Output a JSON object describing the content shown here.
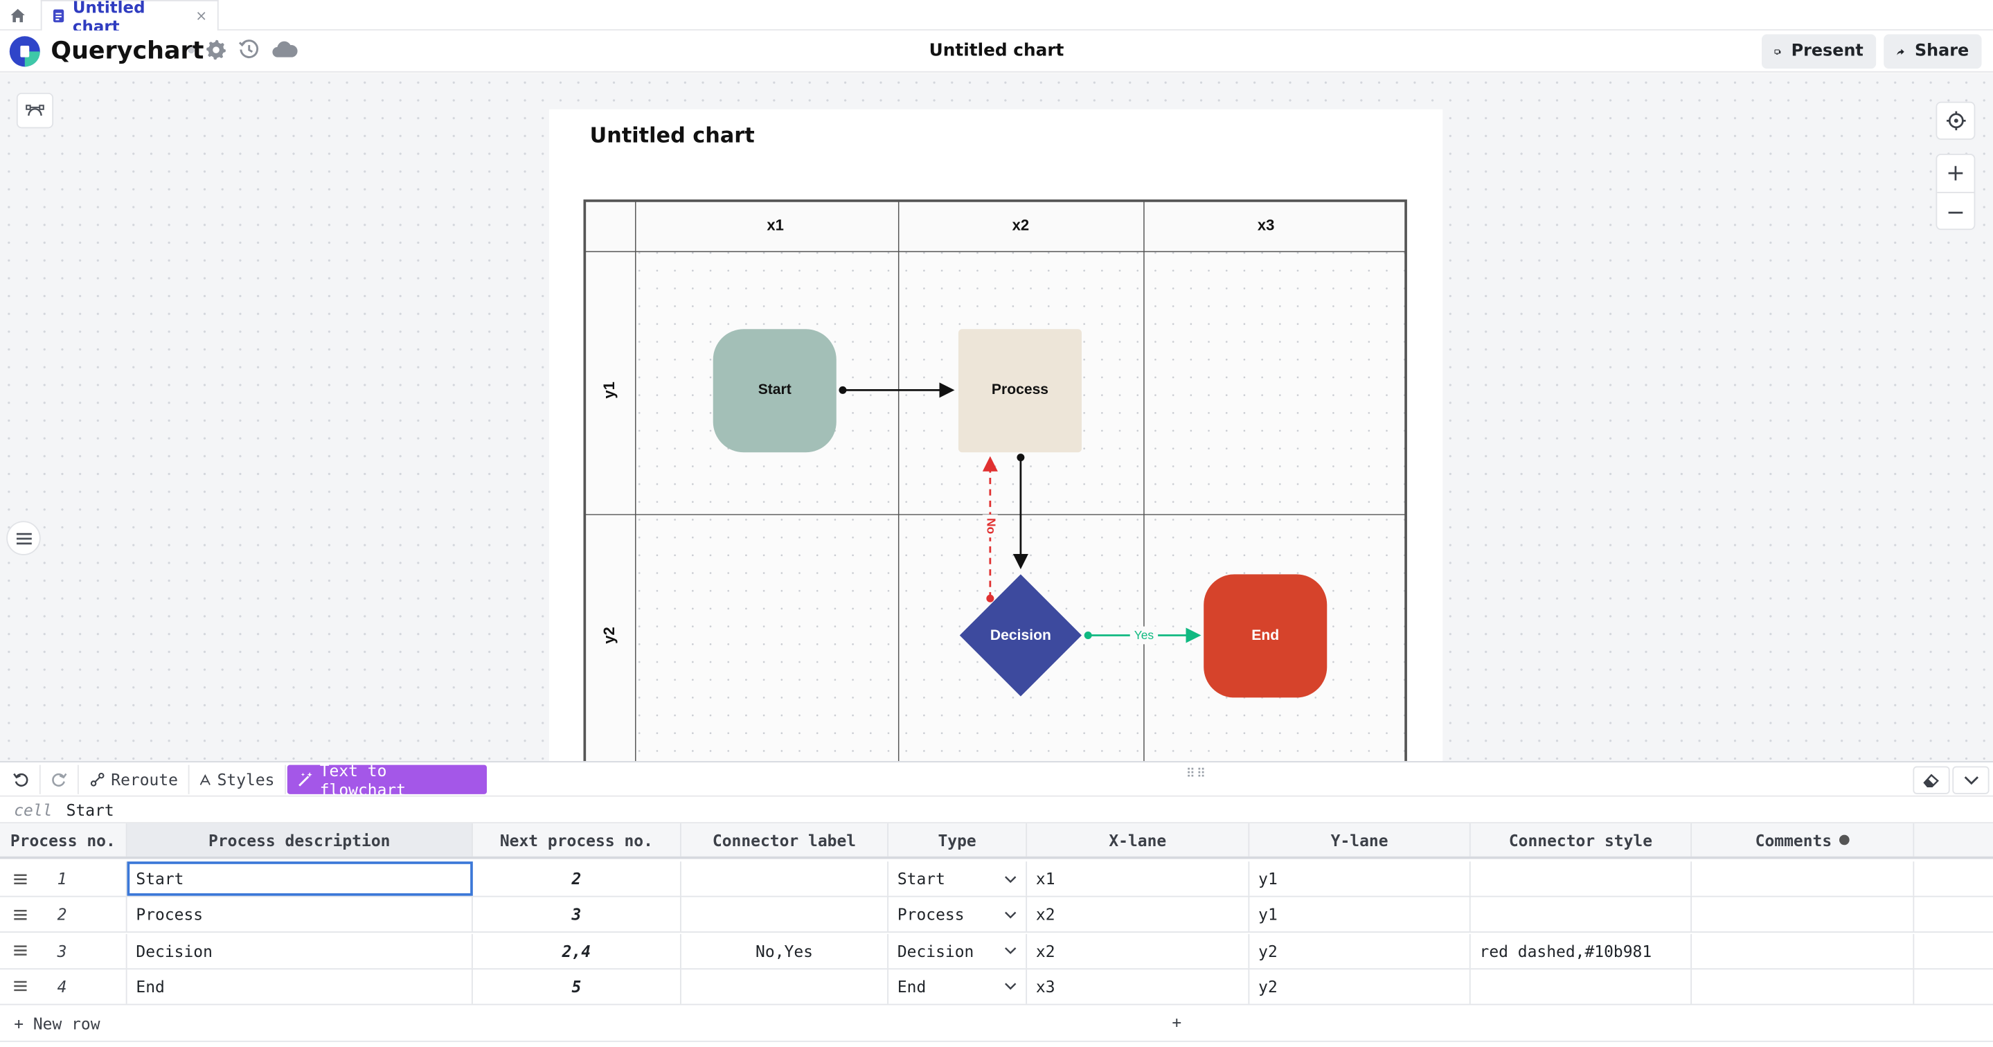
{
  "tab": {
    "label": "Untitled chart",
    "close": "×"
  },
  "app": {
    "name": "Querychart"
  },
  "header": {
    "title": "Untitled chart",
    "present_label": "Present",
    "share_label": "Share"
  },
  "chart": {
    "title": "Untitled chart",
    "columns": [
      "x1",
      "x2",
      "x3"
    ],
    "rows": [
      "y1",
      "y2"
    ],
    "nodes": {
      "start": "Start",
      "process": "Process",
      "decision": "Decision",
      "end": "End"
    },
    "edge_labels": {
      "no": "No",
      "yes": "Yes"
    },
    "colors": {
      "start": "#a3bfb7",
      "process": "#ede5d8",
      "decision": "#3d4a9e",
      "end": "#d6432b",
      "no_edge": "#e03030",
      "yes_edge": "#10b981"
    }
  },
  "zoom": {
    "in": "+",
    "out": "−"
  },
  "toolbar": {
    "reroute": "Reroute",
    "styles": "Styles",
    "text_to_flowchart": "Text to flowchart",
    "drag": "⠿⠿"
  },
  "cellbar": {
    "tag": "cell",
    "value": "Start"
  },
  "table": {
    "headers": [
      "Process no.",
      "Process description",
      "Next process no.",
      "Connector label",
      "Type",
      "X-lane",
      "Y-lane",
      "Connector style",
      "Comments"
    ],
    "rows": [
      {
        "no": "1",
        "desc": "Start",
        "next": "2",
        "label": "",
        "type": "Start",
        "x": "x1",
        "y": "y1",
        "style": "",
        "comments": ""
      },
      {
        "no": "2",
        "desc": "Process",
        "next": "3",
        "label": "",
        "type": "Process",
        "x": "x2",
        "y": "y1",
        "style": "",
        "comments": ""
      },
      {
        "no": "3",
        "desc": "Decision",
        "next": "2,4",
        "label": "No,Yes",
        "type": "Decision",
        "x": "x2",
        "y": "y2",
        "style": "red dashed,#10b981",
        "comments": ""
      },
      {
        "no": "4",
        "desc": "End",
        "next": "5",
        "label": "",
        "type": "End",
        "x": "x3",
        "y": "y2",
        "style": "",
        "comments": ""
      }
    ],
    "new_row_label": "+ New row",
    "add_column": "+"
  }
}
